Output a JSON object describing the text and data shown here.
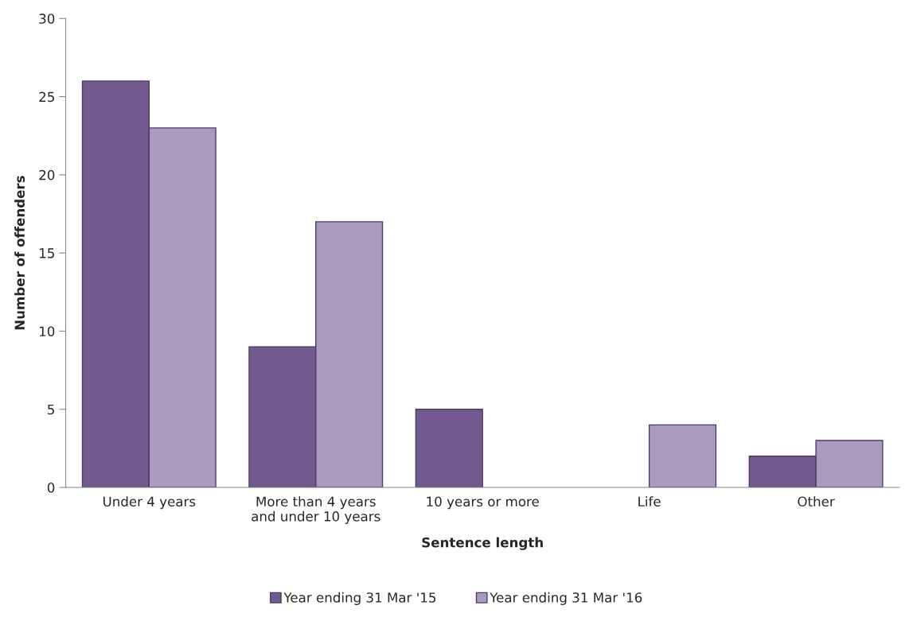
{
  "chart_data": {
    "type": "bar",
    "xlabel": "Sentence length",
    "ylabel": "Number of offenders",
    "categories": [
      "Under 4 years",
      "More than 4 years\nand under 10 years",
      "10 years or more",
      "Life",
      "Other"
    ],
    "series": [
      {
        "name": "Year ending 31 Mar '15",
        "color": "#725a8e",
        "values": [
          26,
          9,
          5,
          null,
          2
        ]
      },
      {
        "name": "Year ending 31 Mar '16",
        "color": "#a99abe",
        "values": [
          23,
          17,
          null,
          4,
          3
        ]
      }
    ],
    "ylim": [
      0,
      30
    ],
    "yticks": [
      0,
      5,
      10,
      15,
      20,
      25,
      30
    ],
    "grid": false,
    "legend": "bottom"
  }
}
